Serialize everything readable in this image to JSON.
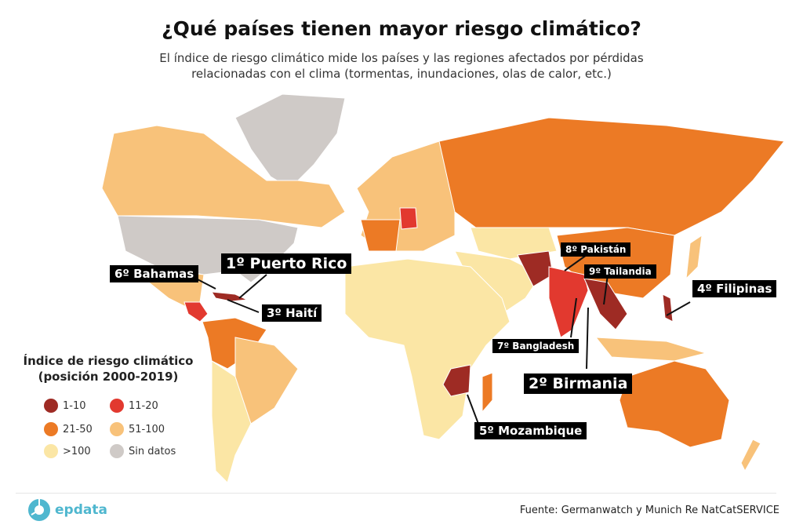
{
  "title": "¿Qué países tienen mayor riesgo climático?",
  "subtitle_line1": "El índice de riesgo climático mide los países y las regiones afectados por pérdidas",
  "subtitle_line2": "relacionadas con el clima (tormentas, inundaciones, olas de calor, etc.)",
  "labels": {
    "puerto_rico": "1º Puerto Rico",
    "birmania": "2º Birmania",
    "haiti": "3º Haití",
    "filipinas": "4º Filipinas",
    "mozambique": "5º Mozambique",
    "bahamas": "6º Bahamas",
    "bangladesh": "7º Bangladesh",
    "pakistan": "8º Pakistán",
    "tailandia": "9º Tailandia"
  },
  "legend": {
    "title_line1": "Índice de riesgo climático",
    "title_line2": "(posición 2000-2019)",
    "items": [
      {
        "label": "1-10",
        "color": "#9e2b24"
      },
      {
        "label": "11-20",
        "color": "#e2392f"
      },
      {
        "label": "21-50",
        "color": "#ec7a25"
      },
      {
        "label": "51-100",
        "color": "#f8c27a"
      },
      {
        "label": ">100",
        "color": "#fbe6a5"
      },
      {
        "label": "Sin datos",
        "color": "#cfcac7"
      }
    ]
  },
  "footer": {
    "logo": "epdata",
    "source": "Fuente: Germanwatch y Munich Re NatCatSERVICE"
  }
}
